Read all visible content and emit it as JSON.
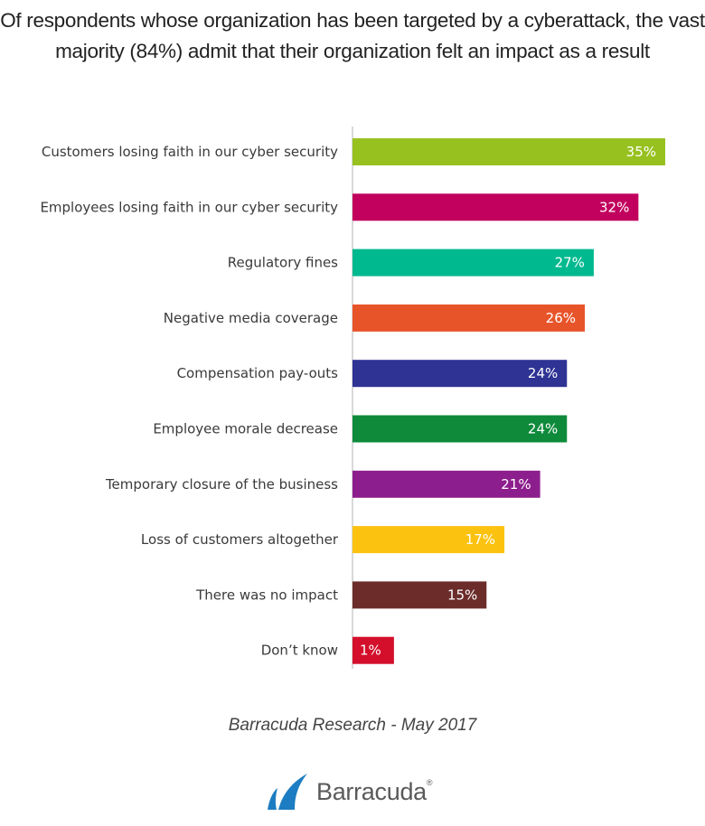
{
  "chart_data": {
    "type": "bar",
    "orientation": "horizontal",
    "title": "Of respondents whose organization has been targeted by a cyberattack, the vast majority (84%) admit that their organization felt an impact as a result",
    "categories": [
      "Customers losing faith in our cyber security",
      "Employees losing faith in our cyber security",
      "Regulatory fines",
      "Negative media coverage",
      "Compensation pay-outs",
      "Employee morale decrease",
      "Temporary closure of the business",
      "Loss of customers altogether",
      "There was no impact",
      "Don’t know"
    ],
    "values": [
      35,
      32,
      27,
      26,
      24,
      24,
      21,
      17,
      15,
      1
    ],
    "value_labels": [
      "35%",
      "32%",
      "27%",
      "26%",
      "24%",
      "24%",
      "21%",
      "17%",
      "15%",
      "1%"
    ],
    "colors": [
      "#97c11f",
      "#c2005d",
      "#00b98f",
      "#e8542a",
      "#2e3394",
      "#0e8a3a",
      "#8d1e8d",
      "#fcc210",
      "#6b2c2a",
      "#d30f2b"
    ],
    "axis_color": "#d9d9d9",
    "xlim": [
      0,
      35
    ],
    "grid": false,
    "legend": "none"
  },
  "source": "Barracuda Research - May 2017",
  "logo": {
    "text": "Barracuda",
    "mark": "®",
    "color": "#1d7dc2"
  }
}
